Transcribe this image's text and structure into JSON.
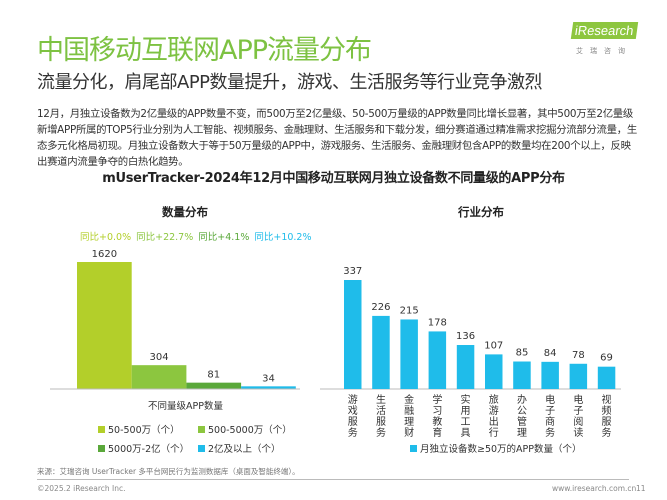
{
  "header": {
    "title": "中国移动互联网APP流量分布",
    "subtitle": "流量分化，肩尾部APP数量提升，游戏、生活服务等行业竞争激烈",
    "logo_text": "iResearch",
    "logo_cn": "艾瑞咨询",
    "brand_color": "#7dc242"
  },
  "body": {
    "paragraph": "12月，月独立设备数为2亿量级的APP数量不变，而500万至2亿量级、50-500万量级的APP数量同比增长显著，其中500万至2亿量级新增APP所属的TOP5行业分别为人工智能、视频服务、金融理财、生活服务和下载分发，细分赛道通过精准需求挖掘分流部分流量，生态多元化格局初现。月独立设备数大于等于50万量级的APP中，游戏服务、生活服务、金融理财包含APP的数量均在200个以上，反映出赛道内流量争夺的白热化趋势。"
  },
  "chart_title": "mUserTracker-2024年12月中国移动互联网月独立设备数不同量级的APP分布",
  "chart_data": [
    {
      "type": "bar",
      "title": "数量分布",
      "xlabel": "不同量级APP数量",
      "categories": [
        "50-500万（个）",
        "500-5000万（个）",
        "5000万-2亿（个）",
        "2亿及以上（个）"
      ],
      "values": [
        1620,
        304,
        81,
        34
      ],
      "yoy": [
        "同比+0.0%",
        "同比+22.7%",
        "同比+4.1%",
        "同比+10.2%"
      ],
      "colors": [
        "#b3cf2a",
        "#8cc63f",
        "#5aa83a",
        "#1fbcea"
      ],
      "legend": "bottom"
    },
    {
      "type": "bar",
      "title": "行业分布",
      "categories": [
        "游戏服务",
        "生活服务",
        "金融理财",
        "学习教育",
        "实用工具",
        "旅游出行",
        "办公管理",
        "电子商务",
        "电子阅读",
        "视频服务"
      ],
      "values": [
        337,
        226,
        215,
        178,
        136,
        107,
        85,
        84,
        78,
        69
      ],
      "series_name": "月独立设备数≥50万的APP数量（个）",
      "color": "#1fbcea",
      "legend": "bottom"
    }
  ],
  "footer": {
    "source": "来源：艾瑞咨询 UserTracker 多平台网民行为监测数据库（桌面及智能终端）。",
    "copyright": "©2025.2 iResearch Inc.",
    "url": "www.iresearch.com.cn",
    "page": "11"
  }
}
